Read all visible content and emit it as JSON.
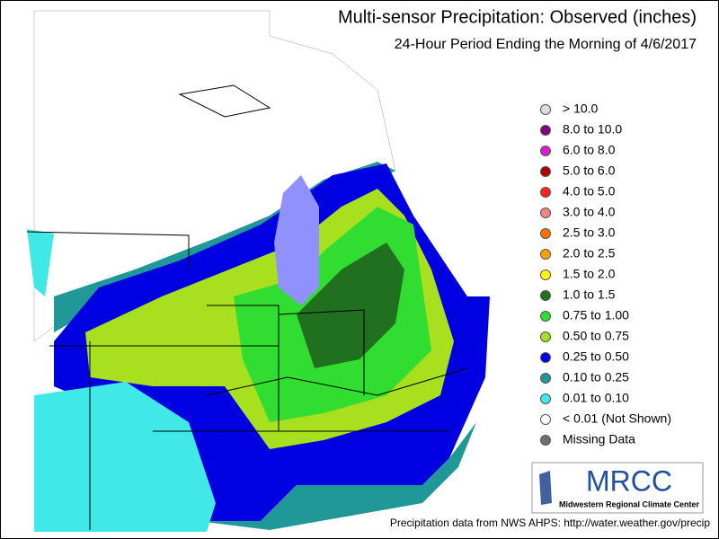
{
  "header": {
    "title": "Multi-sensor Precipitation:  Observed (inches)",
    "subtitle": "24-Hour Period Ending the Morning of 4/6/2017"
  },
  "legend": {
    "items": [
      {
        "label": "> 10.0",
        "color": "#dcdcdc"
      },
      {
        "label": "8.0 to 10.0",
        "color": "#800080"
      },
      {
        "label": "6.0 to 8.0",
        "color": "#d020d0"
      },
      {
        "label": "5.0 to 6.0",
        "color": "#b00000"
      },
      {
        "label": "4.0 to 5.0",
        "color": "#ff2020"
      },
      {
        "label": "3.0 to 4.0",
        "color": "#f08888"
      },
      {
        "label": "2.5 to 3.0",
        "color": "#ff7000"
      },
      {
        "label": "2.0 to 2.5",
        "color": "#ffa000"
      },
      {
        "label": "1.5 to 2.0",
        "color": "#ffff00"
      },
      {
        "label": "1.0 to 1.5",
        "color": "#207020"
      },
      {
        "label": "0.75 to 1.00",
        "color": "#30dd30"
      },
      {
        "label": "0.50 to 0.75",
        "color": "#a8e020"
      },
      {
        "label": "0.25 to 0.50",
        "color": "#0000e0"
      },
      {
        "label": "0.10 to 0.25",
        "color": "#209898"
      },
      {
        "label": "0.01 to 0.10",
        "color": "#40e8e8"
      },
      {
        "label": "< 0.01 (Not Shown)",
        "color": "#ffffff"
      },
      {
        "label": "Missing Data",
        "color": "#707070"
      }
    ]
  },
  "logo": {
    "name": "MRCC",
    "full_name": "Midwestern Regional Climate Center"
  },
  "footer": {
    "source": "Precipitation data from NWS AHPS: http://water.weather.gov/precip"
  }
}
